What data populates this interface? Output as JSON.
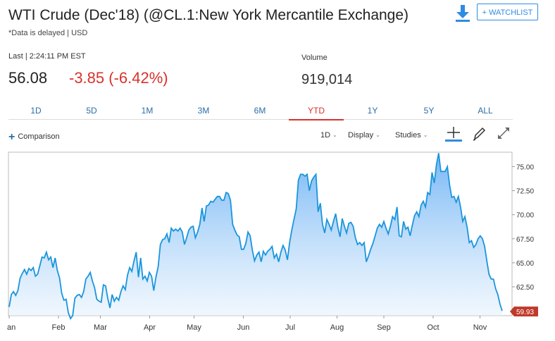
{
  "header": {
    "title": "WTI Crude (Dec'18) (@CL.1:New York Mercantile Exchange)",
    "delayed_note": "*Data is delayed | USD",
    "watchlist_label": "+ WATCHLIST",
    "download_icon": "download-icon"
  },
  "quote": {
    "last_label": "Last | 2:24:11 PM EST",
    "last_price": "56.08",
    "change": "-3.85 (-6.42%)",
    "volume_label": "Volume",
    "volume": "919,014"
  },
  "tabs": [
    "1D",
    "5D",
    "1M",
    "3M",
    "6M",
    "YTD",
    "1Y",
    "5Y",
    "ALL"
  ],
  "active_tab": "YTD",
  "toolbar": {
    "comparison": "Comparison",
    "interval": "1D",
    "display": "Display",
    "studies": "Studies",
    "icons": [
      "crosshair-icon",
      "draw-pencil-icon",
      "fullscreen-icon"
    ]
  },
  "colors": {
    "accent": "#2e8ce3",
    "line": "#1a95dc",
    "negative": "#d8322b",
    "last_badge": "#c0392b"
  },
  "chart_data": {
    "type": "area",
    "x_labels": [
      "an",
      "Feb",
      "Mar",
      "Apr",
      "May",
      "Jun",
      "Jul",
      "Aug",
      "Sep",
      "Oct",
      "Nov"
    ],
    "y_ticks": [
      "75.00",
      "72.50",
      "70.00",
      "67.50",
      "65.00",
      "62.50"
    ],
    "ylim": [
      59.5,
      76.5
    ],
    "last_value": "59.93",
    "grid": false,
    "series": [
      {
        "values": [
          60.4,
          61.7,
          62.0,
          61.6,
          62.1,
          63.4,
          63.9,
          64.3,
          63.8,
          64.4,
          64.2,
          64.5,
          63.6,
          63.8,
          64.7,
          65.6,
          65.5,
          66.1,
          65.3,
          65.6,
          64.5,
          65.5,
          64.2,
          63.4,
          61.8,
          61.1,
          61.2,
          59.8,
          59.2,
          59.5,
          61.3,
          61.6,
          61.7,
          61.4,
          62.0,
          63.3,
          63.6,
          64.0,
          63.1,
          62.4,
          61.2,
          61.0,
          60.9,
          62.7,
          62.6,
          61.3,
          60.3,
          61.7,
          61.0,
          61.4,
          61.1,
          62.0,
          62.6,
          62.2,
          63.7,
          64.5,
          64.1,
          65.2,
          66.1,
          63.5,
          65.5,
          63.3,
          63.6,
          63.1,
          64.0,
          63.6,
          62.1,
          63.5,
          64.6,
          66.9,
          67.4,
          67.5,
          68.0,
          67.1,
          68.6,
          68.3,
          68.5,
          68.3,
          68.6,
          68.2,
          66.9,
          67.6,
          68.4,
          68.7,
          68.8,
          67.6,
          68.2,
          69.0,
          70.7,
          69.3,
          70.9,
          71.0,
          71.4,
          71.3,
          71.6,
          71.9,
          71.9,
          71.5,
          71.5,
          72.3,
          72.2,
          71.5,
          69.0,
          68.4,
          67.9,
          67.7,
          66.4,
          66.4,
          67.0,
          68.2,
          67.8,
          66.3,
          65.2,
          65.8,
          66.1,
          65.1,
          66.2,
          65.8,
          66.2,
          66.4,
          66.7,
          65.5,
          65.9,
          65.1,
          66.1,
          66.8,
          66.3,
          65.3,
          67.1,
          68.4,
          69.5,
          70.6,
          73.6,
          74.2,
          74.2,
          74.0,
          74.2,
          72.5,
          73.5,
          73.9,
          74.2,
          70.3,
          71.2,
          69.0,
          68.1,
          69.5,
          69.0,
          68.4,
          69.3,
          70.1,
          68.7,
          67.7,
          69.6,
          68.8,
          68.1,
          69.1,
          69.2,
          68.8,
          67.6,
          66.9,
          67.1,
          66.8,
          67.1,
          65.1,
          65.7,
          66.4,
          67.0,
          67.8,
          68.6,
          69.0,
          68.7,
          69.3,
          68.6,
          68.0,
          68.8,
          69.8,
          69.5,
          70.8,
          67.8,
          67.7,
          69.3,
          68.5,
          68.7,
          67.8,
          68.9,
          69.9,
          70.3,
          69.8,
          71.0,
          71.4,
          70.8,
          72.3,
          72.1,
          74.4,
          73.3,
          75.2,
          76.4,
          74.5,
          74.5,
          74.5,
          75.0,
          73.1,
          71.8,
          71.9,
          71.3,
          71.9,
          70.8,
          69.3,
          69.8,
          68.7,
          67.1,
          67.3,
          66.6,
          66.9,
          67.5,
          67.8,
          67.5,
          66.7,
          65.2,
          63.8,
          63.3,
          63.3,
          62.3,
          61.7,
          60.7,
          60.0
        ]
      }
    ]
  }
}
